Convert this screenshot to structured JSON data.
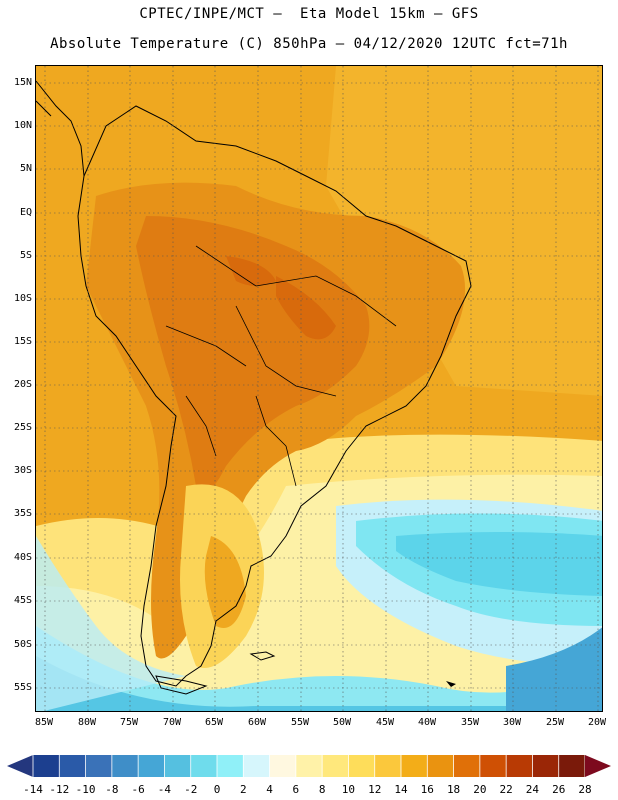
{
  "header": {
    "line1": "CPTEC/INPE/MCT –  Eta Model 15km – GFS",
    "line2": "Absolute Temperature (C) 850hPa – 04/12/2020 12UTC fct=71h"
  },
  "map": {
    "lat_labels": [
      "15N",
      "10N",
      "5N",
      "EQ",
      "5S",
      "10S",
      "15S",
      "20S",
      "25S",
      "30S",
      "35S",
      "40S",
      "45S",
      "50S",
      "55S"
    ],
    "lon_labels": [
      "85W",
      "80W",
      "75W",
      "70W",
      "65W",
      "60W",
      "55W",
      "50W",
      "45W",
      "40W",
      "35W",
      "30W",
      "25W",
      "20W"
    ],
    "grid": "dotted",
    "land_color": "#000000"
  },
  "colorbar": {
    "labels": [
      "-14",
      "-12",
      "-10",
      "-8",
      "-6",
      "-4",
      "-2",
      "0",
      "2",
      "4",
      "6",
      "8",
      "10",
      "12",
      "14",
      "16",
      "18",
      "20",
      "22",
      "24",
      "26",
      "28"
    ],
    "colors": [
      "#1c3f8f",
      "#2a5aa8",
      "#3a72b8",
      "#3f8ec8",
      "#45a6d6",
      "#55c0e0",
      "#6fdcec",
      "#90f0f8",
      "#d6f6fc",
      "#fff8e0",
      "#fff2a8",
      "#ffe87c",
      "#fedd5a",
      "#fbc83c",
      "#f3ad18",
      "#ea9310",
      "#e07008",
      "#cf5004",
      "#b83a04",
      "#9a2606",
      "#7a1a0a"
    ],
    "low_arrow_color": "#24377e",
    "high_arrow_color": "#7d0a1e"
  }
}
